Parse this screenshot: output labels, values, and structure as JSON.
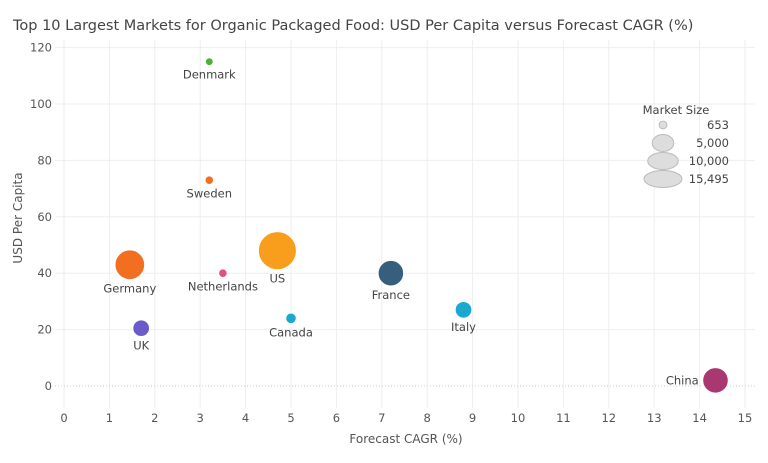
{
  "chart_data": {
    "type": "scatter",
    "title": "Top 10 Largest Markets for Organic Packaged Food: USD Per Capita versus Forecast CAGR (%)",
    "xlabel": "Forecast CAGR (%)",
    "ylabel": "USD Per Capita",
    "xlim": [
      -0.2,
      15.2
    ],
    "ylim": [
      -8,
      122
    ],
    "xticks": [
      0,
      1,
      2,
      3,
      4,
      5,
      6,
      7,
      8,
      9,
      10,
      11,
      12,
      13,
      14,
      15
    ],
    "yticks": [
      0,
      20,
      40,
      60,
      80,
      100,
      120
    ],
    "grid": true,
    "size_variable": "Market Size",
    "points": [
      {
        "name": "Denmark",
        "x": 3.2,
        "y": 115,
        "size": 653,
        "color": "#4caf3a",
        "label_pos": "below"
      },
      {
        "name": "Sweden",
        "x": 3.2,
        "y": 73,
        "size": 800,
        "color": "#f26f21",
        "label_pos": "below"
      },
      {
        "name": "Germany",
        "x": 1.45,
        "y": 43,
        "size": 9500,
        "color": "#f26f21",
        "label_pos": "below"
      },
      {
        "name": "Netherlands",
        "x": 3.5,
        "y": 40,
        "size": 800,
        "color": "#e0527e",
        "label_pos": "below"
      },
      {
        "name": "US",
        "x": 4.7,
        "y": 48,
        "size": 15495,
        "color": "#f99d1c",
        "label_pos": "below"
      },
      {
        "name": "France",
        "x": 7.2,
        "y": 40,
        "size": 7000,
        "color": "#355f7c",
        "label_pos": "below"
      },
      {
        "name": "Canada",
        "x": 5.0,
        "y": 24,
        "size": 1200,
        "color": "#1aa7d1",
        "label_pos": "below"
      },
      {
        "name": "Italy",
        "x": 8.8,
        "y": 27,
        "size": 3000,
        "color": "#1aa7d1",
        "label_pos": "below"
      },
      {
        "name": "UK",
        "x": 1.7,
        "y": 20.5,
        "size": 3000,
        "color": "#6a5bc9",
        "label_pos": "below"
      },
      {
        "name": "China",
        "x": 14.35,
        "y": 2,
        "size": 7000,
        "color": "#a8386f",
        "label_pos": "left"
      }
    ],
    "legend": {
      "title": "Market Size",
      "placement": "top-right",
      "entries": [
        {
          "label": "653",
          "size": 653
        },
        {
          "label": "5,000",
          "size": 5000
        },
        {
          "label": "10,000",
          "size": 10000
        },
        {
          "label": "15,495",
          "size": 15495
        }
      ]
    }
  }
}
